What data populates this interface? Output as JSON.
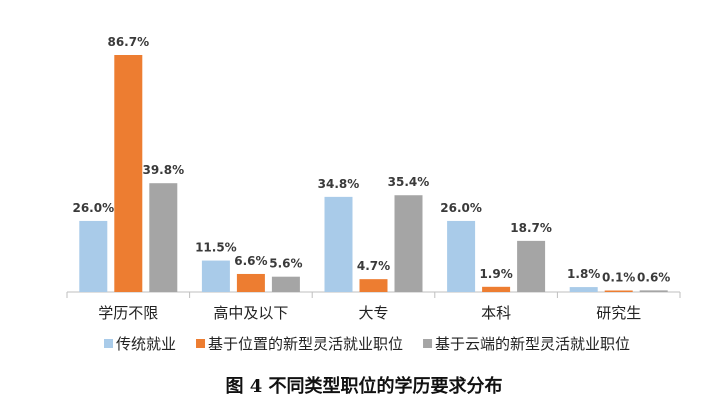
{
  "caption": "图 4 不同类型职位的学历要求分布",
  "chart_data": {
    "type": "bar",
    "categories": [
      "学历不限",
      "高中及以下",
      "大专",
      "本科",
      "研究生"
    ],
    "series": [
      {
        "name": "传统就业",
        "values": [
          26.0,
          11.5,
          34.8,
          26.0,
          1.8
        ],
        "color": "#a9cbe9"
      },
      {
        "name": "基于位置的新型灵活就业职位",
        "values": [
          86.7,
          6.6,
          4.7,
          1.9,
          0.1
        ],
        "color": "#ed7d31"
      },
      {
        "name": "基于云端的新型灵活就业职位",
        "values": [
          39.8,
          5.6,
          35.4,
          18.7,
          0.6
        ],
        "color": "#a5a5a5"
      }
    ],
    "value_suffix": "%",
    "ylim": [
      0,
      100
    ],
    "grid": false,
    "legend_position": "bottom"
  }
}
